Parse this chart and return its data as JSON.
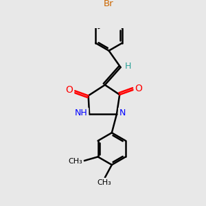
{
  "bg_color": "#e8e8e8",
  "bond_color": "#000000",
  "n_color": "#0000ff",
  "o_color": "#ff0000",
  "br_color": "#cc6600",
  "h_color": "#2aa198",
  "bond_width": 1.8,
  "figsize": [
    3.0,
    3.0
  ],
  "dpi": 100,
  "xlim": [
    -3.5,
    3.5
  ],
  "ylim": [
    -4.5,
    4.5
  ]
}
